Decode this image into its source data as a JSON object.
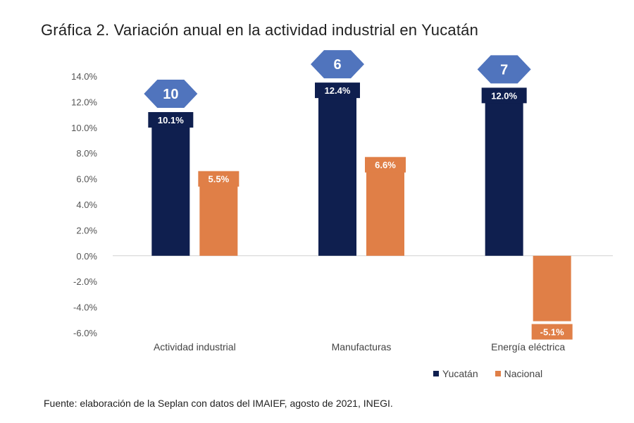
{
  "chart_data": {
    "type": "bar",
    "title": "Gráfica 2. Variación anual en la actividad industrial en Yucatán",
    "categories": [
      "Actividad industrial",
      "Manufacturas",
      "Energía eléctrica"
    ],
    "series": [
      {
        "name": "Yucatán",
        "values": [
          10.1,
          12.4,
          12.0
        ],
        "labels": [
          "10.1%",
          "12.4%",
          "12.0%"
        ],
        "color": "#0f1f4f"
      },
      {
        "name": "Nacional",
        "values": [
          5.5,
          6.6,
          -5.1
        ],
        "labels": [
          "5.5%",
          "6.6%",
          "-5.1%"
        ],
        "color": "#e07f47"
      }
    ],
    "rank_badges": [
      "10",
      "6",
      "7"
    ],
    "rank_badge_color": "#5074bd",
    "y_ticks": [
      "14.0%",
      "12.0%",
      "10.0%",
      "8.0%",
      "6.0%",
      "4.0%",
      "2.0%",
      "0.0%",
      "-2.0%",
      "-4.0%",
      "-6.0%"
    ],
    "ylim": [
      -6,
      14
    ],
    "grid": false,
    "legend_position": "bottom-right"
  },
  "source": "Fuente: elaboración de la Seplan con datos del IMAIEF, agosto de 2021, INEGI."
}
